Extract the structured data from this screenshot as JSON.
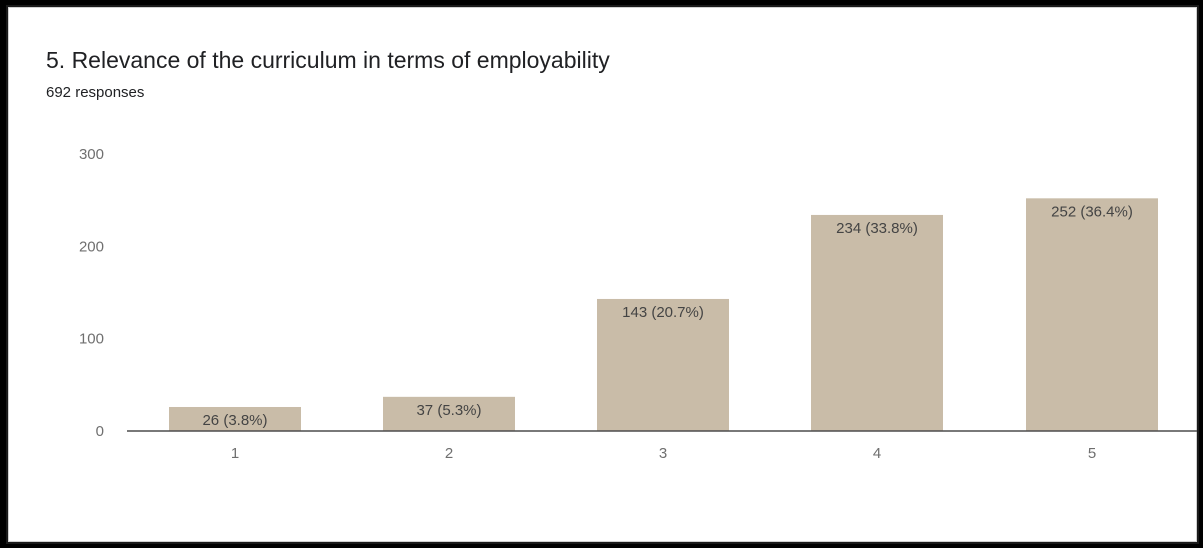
{
  "question": {
    "title": "5. Relevance of the curriculum in terms of employability",
    "responses": "692 responses"
  },
  "colors": {
    "bar": "#c9bca8",
    "axis": "#4d4d4d",
    "tick_text": "#6f6f6f",
    "label_text": "#444444"
  },
  "chart_data": {
    "type": "bar",
    "title": "5. Relevance of the curriculum in terms of employability",
    "subtitle": "692 responses",
    "categories": [
      "1",
      "2",
      "3",
      "4",
      "5"
    ],
    "values": [
      26,
      37,
      143,
      234,
      252
    ],
    "data_labels": [
      "26 (3.8%)",
      "37 (5.3%)",
      "143 (20.7%)",
      "234 (33.8%)",
      "252 (36.4%)"
    ],
    "y_ticks": [
      0,
      100,
      200,
      300
    ],
    "ylim": [
      0,
      300
    ],
    "grid": false,
    "legend": "none"
  }
}
